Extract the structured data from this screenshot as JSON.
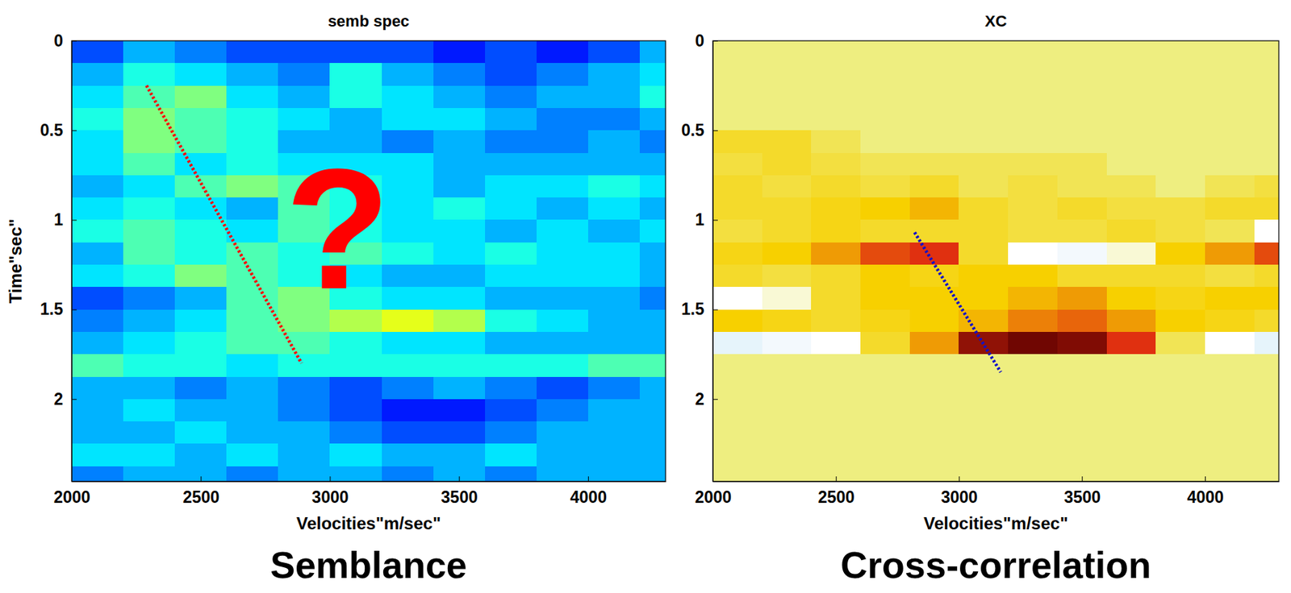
{
  "chart_data": [
    {
      "type": "heatmap",
      "title": "semb spec",
      "x_label": "Velocities\"m/sec\"",
      "y_label": "Time\"sec\"",
      "caption": "Semblance",
      "xlim": [
        2000,
        4300
      ],
      "ylim": [
        0,
        2.46
      ],
      "xticks": [
        2000,
        2500,
        3000,
        3500,
        4000
      ],
      "yticks": [
        0,
        0.5,
        1,
        1.5,
        2
      ],
      "zlim": [
        0,
        1
      ],
      "x_edges": [
        2000,
        2200,
        2400,
        2600,
        2800,
        3000,
        3200,
        3400,
        3600,
        3800,
        4000,
        4200,
        4300
      ],
      "y_edges": [
        0,
        0.125,
        0.25,
        0.375,
        0.5,
        0.625,
        0.75,
        0.875,
        1,
        1.125,
        1.25,
        1.375,
        1.5,
        1.625,
        1.75,
        1.875,
        2,
        2.125,
        2.25,
        2.375,
        2.46
      ],
      "z": [
        [
          0.2,
          0.3,
          0.25,
          0.2,
          0.2,
          0.2,
          0.2,
          0.15,
          0.2,
          0.15,
          0.2,
          0.3
        ],
        [
          0.3,
          0.4,
          0.35,
          0.3,
          0.25,
          0.4,
          0.3,
          0.25,
          0.2,
          0.25,
          0.3,
          0.35
        ],
        [
          0.35,
          0.45,
          0.5,
          0.35,
          0.3,
          0.4,
          0.35,
          0.3,
          0.25,
          0.3,
          0.3,
          0.4
        ],
        [
          0.4,
          0.5,
          0.45,
          0.4,
          0.35,
          0.3,
          0.35,
          0.35,
          0.3,
          0.25,
          0.25,
          0.3
        ],
        [
          0.35,
          0.5,
          0.45,
          0.4,
          0.3,
          0.3,
          0.25,
          0.3,
          0.25,
          0.25,
          0.3,
          0.25
        ],
        [
          0.35,
          0.45,
          0.35,
          0.4,
          0.35,
          0.35,
          0.35,
          0.3,
          0.3,
          0.3,
          0.3,
          0.3
        ],
        [
          0.3,
          0.35,
          0.45,
          0.5,
          0.45,
          0.4,
          0.35,
          0.3,
          0.35,
          0.35,
          0.4,
          0.35
        ],
        [
          0.35,
          0.4,
          0.35,
          0.3,
          0.45,
          0.4,
          0.35,
          0.4,
          0.35,
          0.3,
          0.35,
          0.3
        ],
        [
          0.4,
          0.45,
          0.4,
          0.35,
          0.45,
          0.4,
          0.35,
          0.35,
          0.3,
          0.35,
          0.3,
          0.35
        ],
        [
          0.3,
          0.45,
          0.4,
          0.45,
          0.4,
          0.45,
          0.4,
          0.35,
          0.4,
          0.35,
          0.35,
          0.3
        ],
        [
          0.35,
          0.4,
          0.5,
          0.45,
          0.4,
          0.35,
          0.3,
          0.3,
          0.35,
          0.35,
          0.35,
          0.3
        ],
        [
          0.2,
          0.25,
          0.3,
          0.45,
          0.5,
          0.4,
          0.35,
          0.35,
          0.3,
          0.3,
          0.3,
          0.25
        ],
        [
          0.25,
          0.3,
          0.35,
          0.45,
          0.5,
          0.55,
          0.6,
          0.55,
          0.4,
          0.35,
          0.3,
          0.3
        ],
        [
          0.3,
          0.35,
          0.4,
          0.45,
          0.45,
          0.4,
          0.35,
          0.35,
          0.3,
          0.3,
          0.3,
          0.3
        ],
        [
          0.45,
          0.4,
          0.4,
          0.35,
          0.4,
          0.4,
          0.4,
          0.4,
          0.4,
          0.4,
          0.45,
          0.45
        ],
        [
          0.3,
          0.3,
          0.25,
          0.3,
          0.25,
          0.2,
          0.25,
          0.3,
          0.25,
          0.2,
          0.25,
          0.3
        ],
        [
          0.3,
          0.35,
          0.3,
          0.3,
          0.25,
          0.2,
          0.15,
          0.15,
          0.2,
          0.25,
          0.3,
          0.3
        ],
        [
          0.3,
          0.3,
          0.35,
          0.3,
          0.3,
          0.25,
          0.2,
          0.2,
          0.25,
          0.3,
          0.3,
          0.3
        ],
        [
          0.35,
          0.35,
          0.3,
          0.35,
          0.3,
          0.35,
          0.3,
          0.3,
          0.35,
          0.3,
          0.3,
          0.3
        ],
        [
          0.25,
          0.3,
          0.3,
          0.25,
          0.3,
          0.3,
          0.25,
          0.3,
          0.25,
          0.3,
          0.3,
          0.3
        ]
      ],
      "series": [
        {
          "type": "line",
          "color": "#ff0000",
          "line_style": "dotted",
          "x": [
            2290,
            2890
          ],
          "values": [
            0.25,
            1.8
          ]
        }
      ],
      "annotations": [
        {
          "text": "?",
          "x": 3030,
          "y": 1.38,
          "color": "#ff0000"
        }
      ]
    },
    {
      "type": "heatmap",
      "title": "XC",
      "x_label": "Velocities\"m/sec\"",
      "caption": "Cross-correlation",
      "xlim": [
        2000,
        4300
      ],
      "ylim": [
        0,
        2.46
      ],
      "xticks": [
        2000,
        2500,
        3000,
        3500,
        4000
      ],
      "yticks": [
        0,
        0.5,
        1,
        1.5,
        2
      ],
      "zlim": [
        -1,
        1
      ],
      "x_edges": [
        2000,
        2200,
        2400,
        2600,
        2800,
        3000,
        3200,
        3400,
        3600,
        3800,
        4000,
        4200,
        4300
      ],
      "y_edges": [
        0,
        0.125,
        0.25,
        0.375,
        0.5,
        0.625,
        0.75,
        0.875,
        1,
        1.125,
        1.25,
        1.375,
        1.5,
        1.625,
        1.75,
        1.875,
        2,
        2.125,
        2.25,
        2.375,
        2.46
      ],
      "z": [
        [
          0,
          0,
          0,
          0,
          0,
          0,
          0,
          0,
          0,
          0,
          0,
          0
        ],
        [
          0,
          0,
          0,
          0,
          0,
          0,
          0,
          0,
          0,
          0,
          0,
          0
        ],
        [
          0,
          0,
          0,
          0,
          0,
          0,
          0,
          0,
          0,
          0,
          0,
          0
        ],
        [
          0,
          0,
          0,
          0,
          0,
          0,
          0,
          0,
          0,
          0,
          0,
          0
        ],
        [
          0.2,
          0.2,
          0.1,
          0,
          0,
          0,
          0,
          0,
          0,
          0,
          0,
          0
        ],
        [
          0.15,
          0.2,
          0.15,
          0.1,
          0.1,
          0.1,
          0.1,
          0.1,
          0,
          0,
          0,
          0
        ],
        [
          0.2,
          0.15,
          0.2,
          0.15,
          0.2,
          0.1,
          0.15,
          0.1,
          0.1,
          0,
          0.1,
          0.15
        ],
        [
          0.2,
          0.2,
          0.25,
          0.3,
          0.35,
          0.2,
          0.15,
          0.2,
          0.15,
          0.15,
          0.2,
          0.2
        ],
        [
          0.15,
          0.2,
          0.25,
          0.2,
          0.2,
          0.2,
          0.15,
          0.15,
          0.2,
          0.15,
          0.1,
          -0.3
        ],
        [
          0.25,
          0.3,
          0.4,
          0.55,
          0.6,
          0.2,
          -0.3,
          -0.4,
          -0.2,
          0.3,
          0.4,
          0.55
        ],
        [
          0.2,
          0.15,
          0.2,
          0.3,
          0.25,
          0.3,
          0.3,
          0.2,
          0.2,
          0.2,
          0.15,
          0.2
        ],
        [
          -0.3,
          -0.2,
          0.2,
          0.3,
          0.3,
          0.3,
          0.35,
          0.4,
          0.3,
          0.25,
          0.3,
          0.3
        ],
        [
          0.3,
          0.25,
          0.2,
          0.25,
          0.3,
          0.35,
          0.45,
          0.5,
          0.4,
          0.3,
          0.25,
          0.2
        ],
        [
          -0.5,
          -0.4,
          -0.3,
          0.2,
          0.4,
          0.85,
          0.95,
          0.9,
          0.6,
          0.1,
          -0.3,
          -0.5
        ],
        [
          0,
          0,
          0,
          0,
          0,
          0,
          0,
          0,
          0,
          0,
          0,
          0
        ],
        [
          0,
          0,
          0,
          0,
          0,
          0,
          0,
          0,
          0,
          0,
          0,
          0
        ],
        [
          0,
          0,
          0,
          0,
          0,
          0,
          0,
          0,
          0,
          0,
          0,
          0
        ],
        [
          0,
          0,
          0,
          0,
          0,
          0,
          0,
          0,
          0,
          0,
          0,
          0
        ],
        [
          0,
          0,
          0,
          0,
          0,
          0,
          0,
          0,
          0,
          0,
          0,
          0
        ],
        [
          0,
          0,
          0,
          0,
          0,
          0,
          0,
          0,
          0,
          0,
          0,
          0
        ]
      ],
      "series": [
        {
          "type": "line",
          "color": "#1010c8",
          "line_style": "dotted",
          "x": [
            2820,
            3170
          ],
          "values": [
            1.07,
            1.85
          ]
        }
      ]
    }
  ]
}
